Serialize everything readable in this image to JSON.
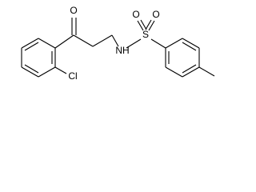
{
  "atoms": [
    {
      "label": "O"
    },
    {
      "label": "Cl"
    },
    {
      "label": "NH"
    },
    {
      "label": "S"
    },
    {
      "label": "O"
    },
    {
      "label": "O"
    }
  ]
}
